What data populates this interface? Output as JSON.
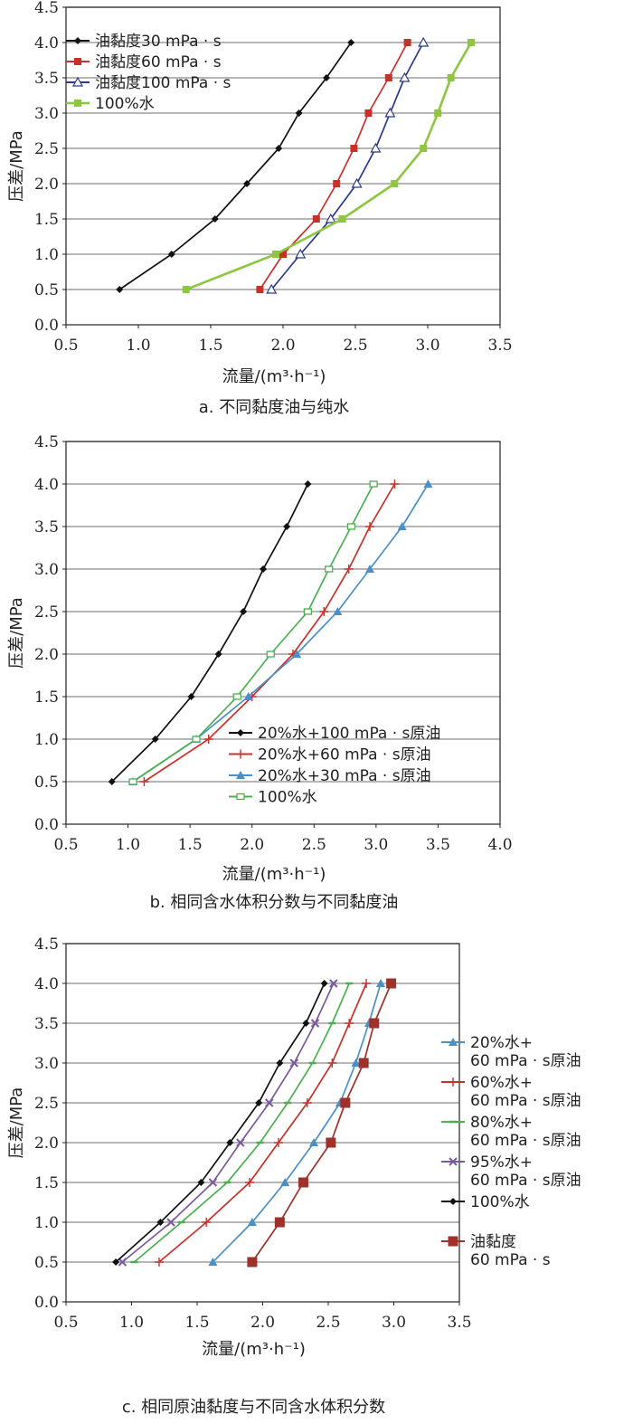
{
  "chart_data": [
    {
      "type": "line",
      "caption": "a. 不同黏度油与纯水",
      "xlabel": "流量/(m³·h⁻¹)",
      "ylabel": "压差/MPa",
      "xlim": [
        0.5,
        3.5
      ],
      "ylim": [
        0,
        4.5
      ],
      "xticks": [
        "0.5",
        "1.0",
        "1.5",
        "2.0",
        "2.5",
        "3.0",
        "3.5"
      ],
      "yticks": [
        "0.0",
        "0.5",
        "1.0",
        "1.5",
        "2.0",
        "2.5",
        "3.0",
        "3.5",
        "4.0",
        "4.5"
      ],
      "grid": "horizontal",
      "legend": "top-left",
      "series": [
        {
          "name": "油黏度30 mPa · s",
          "color": "#111111",
          "marker": "diamond",
          "x": [
            0.87,
            1.23,
            1.53,
            1.75,
            1.97,
            2.11,
            2.3,
            2.47
          ],
          "y": [
            0.5,
            1.0,
            1.5,
            2.0,
            2.5,
            3.0,
            3.5,
            4.0
          ]
        },
        {
          "name": "油黏度60 mPa · s",
          "color": "#c8302a",
          "marker": "square",
          "x": [
            1.84,
            2.0,
            2.23,
            2.37,
            2.49,
            2.59,
            2.73,
            2.86
          ],
          "y": [
            0.5,
            1.0,
            1.5,
            2.0,
            2.5,
            3.0,
            3.5,
            4.0
          ]
        },
        {
          "name": "油黏度100 mPa · s",
          "color": "#2b3a8c",
          "marker": "triangle-open",
          "x": [
            1.92,
            2.12,
            2.33,
            2.51,
            2.64,
            2.74,
            2.84,
            2.97
          ],
          "y": [
            0.5,
            1.0,
            1.5,
            2.0,
            2.5,
            3.0,
            3.5,
            4.0
          ]
        },
        {
          "name": "100%水",
          "color": "#8dc63f",
          "marker": "square",
          "x": [
            1.33,
            1.95,
            2.41,
            2.77,
            2.97,
            3.07,
            3.16,
            3.3
          ],
          "y": [
            0.5,
            1.0,
            1.5,
            2.0,
            2.5,
            3.0,
            3.5,
            4.0
          ]
        }
      ]
    },
    {
      "type": "line",
      "caption": "b. 相同含水体积分数与不同黏度油",
      "xlabel": "流量/(m³·h⁻¹)",
      "ylabel": "压差/MPa",
      "xlim": [
        0.5,
        4.0
      ],
      "ylim": [
        0,
        4.5
      ],
      "xticks": [
        "0.5",
        "1.0",
        "1.5",
        "2.0",
        "2.5",
        "3.0",
        "3.5",
        "4.0"
      ],
      "yticks": [
        "0.0",
        "0.5",
        "1.0",
        "1.5",
        "2.0",
        "2.5",
        "3.0",
        "3.5",
        "4.0",
        "4.5"
      ],
      "grid": "horizontal",
      "legend": "bottom-right",
      "series": [
        {
          "name": "20%水+100 mPa · s原油",
          "color": "#111111",
          "marker": "diamond",
          "x": [
            0.87,
            1.22,
            1.51,
            1.73,
            1.93,
            2.09,
            2.28,
            2.45
          ],
          "y": [
            0.5,
            1.0,
            1.5,
            2.0,
            2.5,
            3.0,
            3.5,
            4.0
          ]
        },
        {
          "name": "20%水+60 mPa · s原油",
          "color": "#c8302a",
          "marker": "plus",
          "x": [
            1.13,
            1.65,
            2.0,
            2.33,
            2.58,
            2.78,
            2.95,
            3.15
          ],
          "y": [
            0.5,
            1.0,
            1.5,
            2.0,
            2.5,
            3.0,
            3.5,
            4.0
          ]
        },
        {
          "name": "20%水+30 mPa · s原油",
          "color": "#4a90c8",
          "marker": "triangle",
          "x": [
            1.04,
            1.55,
            1.97,
            2.36,
            2.69,
            2.95,
            3.21,
            3.42
          ],
          "y": [
            0.5,
            1.0,
            1.5,
            2.0,
            2.5,
            3.0,
            3.5,
            4.0
          ]
        },
        {
          "name": "100%水",
          "color": "#4caf50",
          "marker": "square-open",
          "x": [
            1.04,
            1.55,
            1.88,
            2.15,
            2.45,
            2.62,
            2.8,
            2.98
          ],
          "y": [
            0.5,
            1.0,
            1.5,
            2.0,
            2.5,
            3.0,
            3.5,
            4.0
          ]
        }
      ]
    },
    {
      "type": "line",
      "caption": "c. 相同原油黏度与不同含水体积分数",
      "xlabel": "流量/(m³·h⁻¹)",
      "ylabel": "压差/MPa",
      "xlim": [
        0.5,
        3.5
      ],
      "ylim": [
        0,
        4.5
      ],
      "xticks": [
        "0.5",
        "1.0",
        "1.5",
        "2.0",
        "2.5",
        "3.0",
        "3.5"
      ],
      "yticks": [
        "0.0",
        "0.5",
        "1.0",
        "1.5",
        "2.0",
        "2.5",
        "3.0",
        "3.5",
        "4.0",
        "4.5"
      ],
      "grid": "horizontal",
      "legend": "right",
      "series": [
        {
          "name": "20%水+\n60 mPa · s原油",
          "color": "#4a90c8",
          "marker": "triangle",
          "x": [
            1.62,
            1.92,
            2.17,
            2.39,
            2.59,
            2.71,
            2.81,
            2.9
          ],
          "y": [
            0.5,
            1.0,
            1.5,
            2.0,
            2.5,
            3.0,
            3.5,
            4.0
          ]
        },
        {
          "name": "60%水+\n60 mPa · s原油",
          "color": "#c8302a",
          "marker": "plus",
          "x": [
            1.21,
            1.57,
            1.9,
            2.12,
            2.34,
            2.53,
            2.66,
            2.79
          ],
          "y": [
            0.5,
            1.0,
            1.5,
            2.0,
            2.5,
            3.0,
            3.5,
            4.0
          ]
        },
        {
          "name": "80%水+\n60 mPa · s原油",
          "color": "#4caf50",
          "marker": "dash",
          "x": [
            1.02,
            1.38,
            1.73,
            1.98,
            2.19,
            2.38,
            2.53,
            2.66
          ],
          "y": [
            0.5,
            1.0,
            1.5,
            2.0,
            2.5,
            3.0,
            3.5,
            4.0
          ]
        },
        {
          "name": "95%水+\n60 mPa · s原油",
          "color": "#7a5a9c",
          "marker": "x",
          "x": [
            0.93,
            1.3,
            1.62,
            1.83,
            2.05,
            2.24,
            2.4,
            2.54
          ],
          "y": [
            0.5,
            1.0,
            1.5,
            2.0,
            2.5,
            3.0,
            3.5,
            4.0
          ]
        },
        {
          "name": "100%水",
          "color": "#111111",
          "marker": "diamond",
          "x": [
            0.88,
            1.22,
            1.53,
            1.75,
            1.97,
            2.13,
            2.33,
            2.47
          ],
          "y": [
            0.5,
            1.0,
            1.5,
            2.0,
            2.5,
            3.0,
            3.5,
            4.0
          ]
        },
        {
          "name": "油黏度\n60 mPa · s",
          "color": "#a0302a",
          "marker": "square-big",
          "x": [
            1.92,
            2.13,
            2.31,
            2.52,
            2.63,
            2.77,
            2.85,
            2.98
          ],
          "y": [
            0.5,
            1.0,
            1.5,
            2.0,
            2.5,
            3.0,
            3.5,
            4.0
          ]
        }
      ]
    }
  ]
}
